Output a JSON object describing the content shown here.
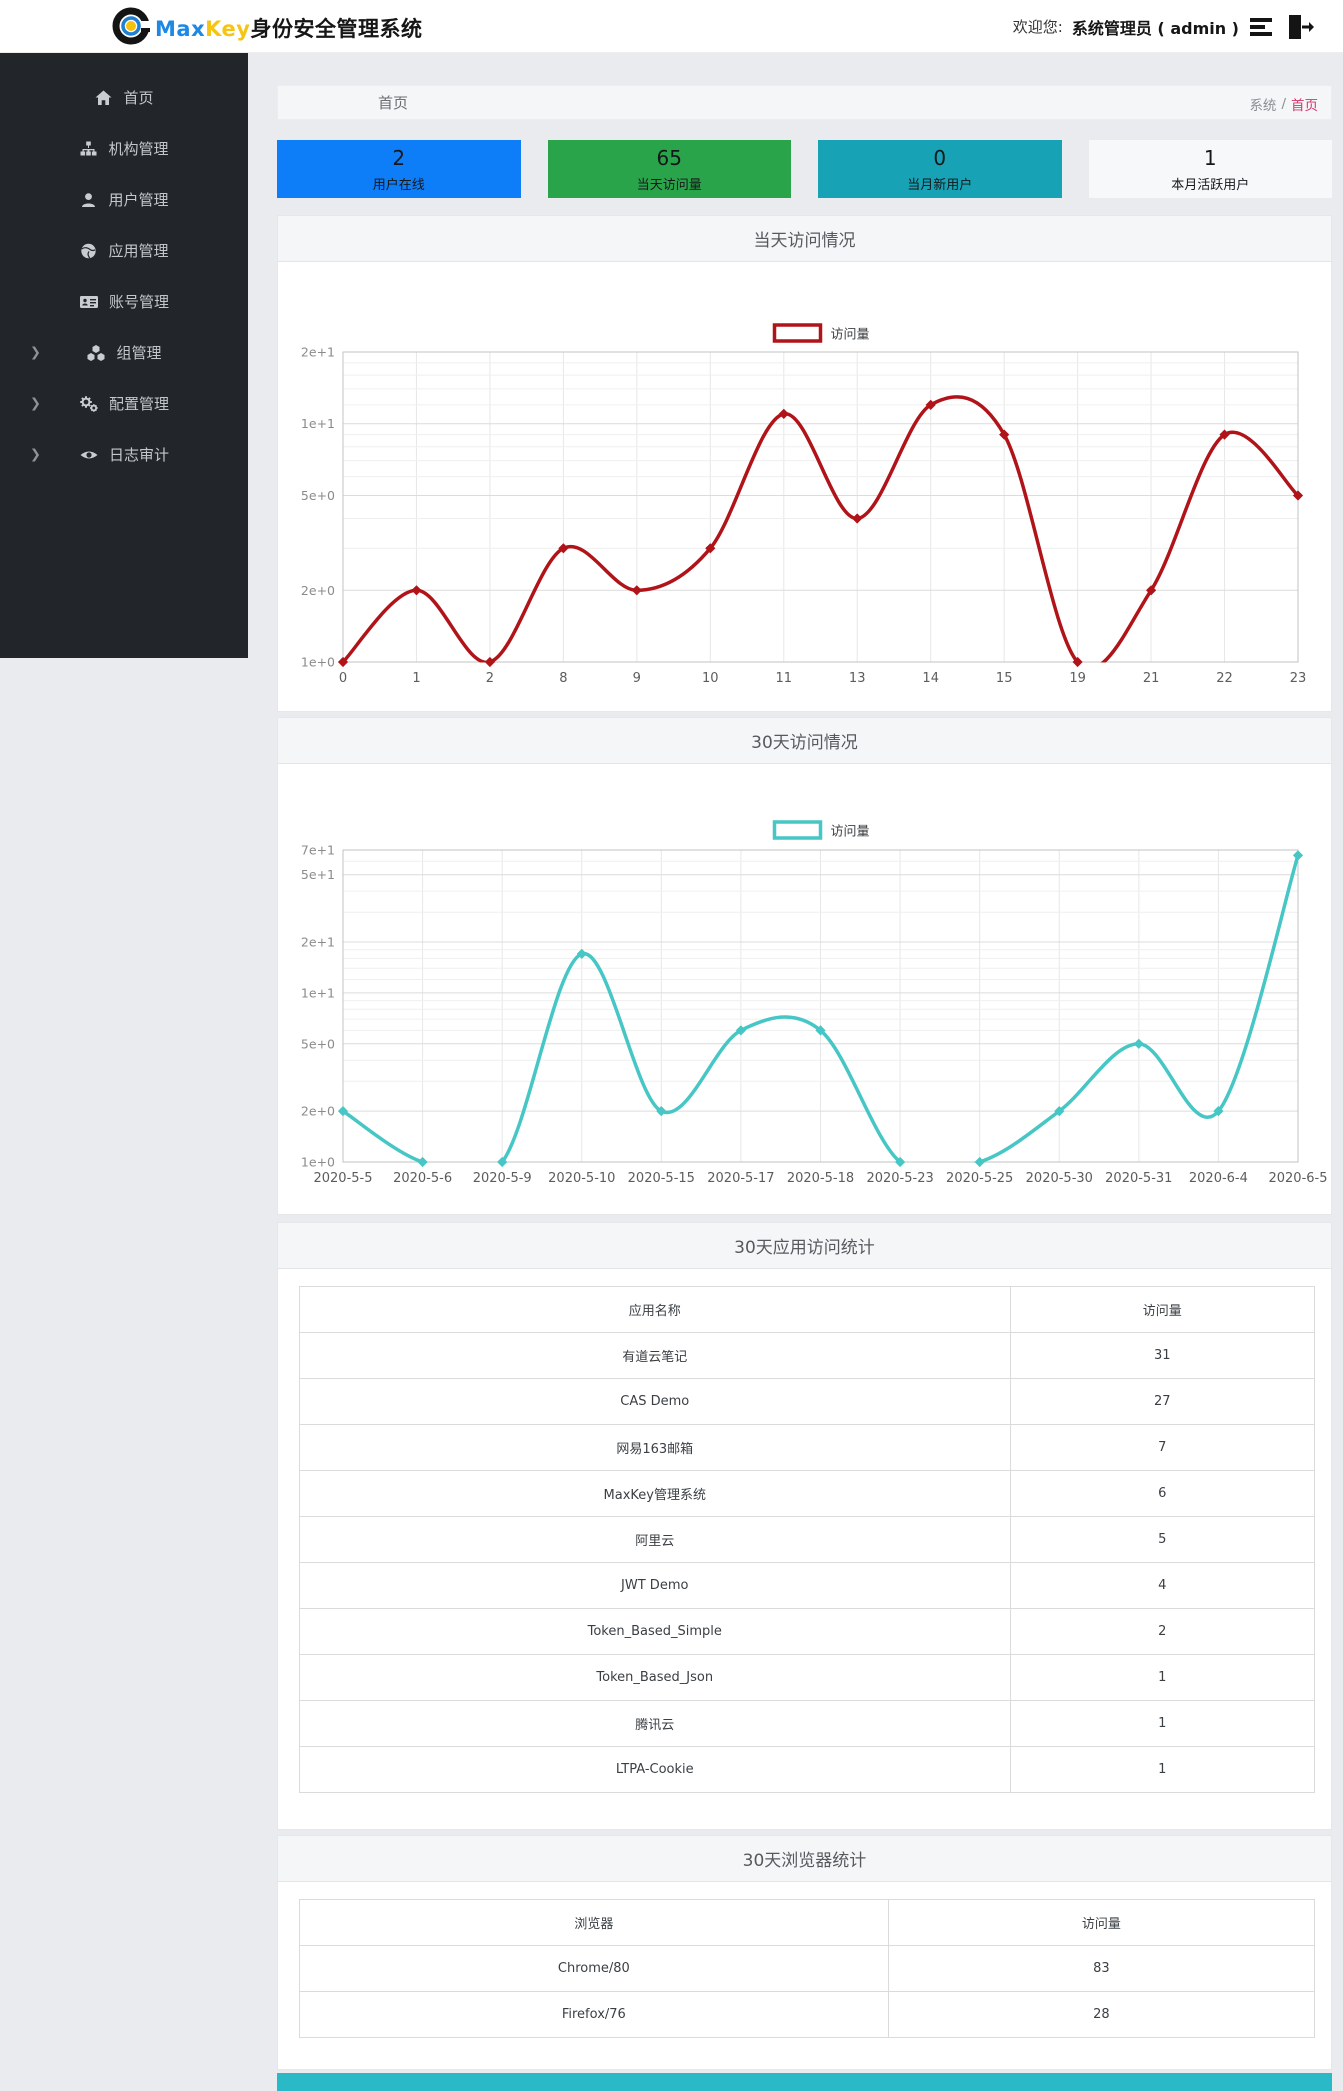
{
  "topbar": {
    "logo_max": "Max",
    "logo_key": "Key",
    "logo_suffix": "身份安全管理系统",
    "welcome_label": "欢迎您:",
    "user": "系统管理员 ( admin )"
  },
  "sidebar": {
    "items": [
      {
        "label": "首页",
        "icon": "home-icon",
        "expandable": false
      },
      {
        "label": "机构管理",
        "icon": "sitemap-icon",
        "expandable": false
      },
      {
        "label": "用户管理",
        "icon": "user-icon",
        "expandable": false
      },
      {
        "label": "应用管理",
        "icon": "globe-icon",
        "expandable": false
      },
      {
        "label": "账号管理",
        "icon": "id-card-icon",
        "expandable": false
      },
      {
        "label": "组管理",
        "icon": "cubes-icon",
        "expandable": true
      },
      {
        "label": "配置管理",
        "icon": "gears-icon",
        "expandable": true
      },
      {
        "label": "日志审计",
        "icon": "eye-icon",
        "expandable": true
      }
    ]
  },
  "header": {
    "title": "首页",
    "breadcrumb_section": "系统",
    "breadcrumb_sep": "/",
    "breadcrumb_current": "首页"
  },
  "stat_cards": [
    {
      "value": "2",
      "label": "用户在线",
      "color": "#0d7ef8"
    },
    {
      "value": "65",
      "label": "当天访问量",
      "color": "#2aa44a"
    },
    {
      "value": "0",
      "label": "当月新用户",
      "color": "#18a2b5"
    },
    {
      "value": "1",
      "label": "本月活跃用户",
      "color": "#f7f8f9"
    }
  ],
  "panels": [
    {
      "title": "当天访问情况"
    },
    {
      "title": "30天访问情况"
    },
    {
      "title": "30天应用访问统计"
    },
    {
      "title": "30天浏览器统计"
    }
  ],
  "chart_data": [
    {
      "type": "line",
      "title": "当天访问情况",
      "legend": "访问量",
      "color": "#b01419",
      "y_scale": "log",
      "ylim": [
        1,
        20
      ],
      "categories": [
        "0",
        "1",
        "2",
        "8",
        "9",
        "10",
        "11",
        "13",
        "14",
        "15",
        "19",
        "21",
        "22",
        "23"
      ],
      "values": [
        1,
        2,
        1,
        3,
        2,
        3,
        11,
        4,
        12,
        9,
        1,
        2,
        9,
        5
      ],
      "yticks": [
        [
          1,
          "1e+0"
        ],
        [
          2,
          "2e+0"
        ],
        [
          5,
          "5e+0"
        ],
        [
          10,
          "1e+1"
        ],
        [
          20,
          "2e+1"
        ]
      ],
      "minor_ticks": [
        3,
        4,
        6,
        7,
        8,
        9,
        12,
        14,
        16,
        18
      ],
      "grid": true,
      "legend_position": "top-center"
    },
    {
      "type": "line",
      "title": "30天访问情况",
      "legend": "访问量",
      "color": "#46c6c4",
      "y_scale": "log",
      "ylim": [
        1,
        70
      ],
      "categories": [
        "2020-5-5",
        "2020-5-6",
        "2020-5-9",
        "2020-5-10",
        "2020-5-15",
        "2020-5-17",
        "2020-5-18",
        "2020-5-23",
        "2020-5-25",
        "2020-5-30",
        "2020-5-31",
        "2020-6-4",
        "2020-6-5"
      ],
      "values": [
        2,
        1,
        1,
        17,
        2,
        6,
        6,
        1,
        1,
        2,
        5,
        2,
        65
      ],
      "yticks": [
        [
          1,
          "1e+0"
        ],
        [
          2,
          "2e+0"
        ],
        [
          5,
          "5e+0"
        ],
        [
          10,
          "1e+1"
        ],
        [
          20,
          "2e+1"
        ],
        [
          50,
          "5e+1"
        ],
        [
          70,
          "7e+1"
        ]
      ],
      "minor_ticks": [
        3,
        4,
        6,
        7,
        8,
        9,
        12,
        14,
        16,
        18,
        30,
        40,
        60
      ],
      "grid": true,
      "legend_position": "top-center"
    }
  ],
  "app_table": {
    "headers": [
      "应用名称",
      "访问量"
    ],
    "rows": [
      [
        "有道云笔记",
        "31"
      ],
      [
        "CAS Demo",
        "27"
      ],
      [
        "网易163邮箱",
        "7"
      ],
      [
        "MaxKey管理系统",
        "6"
      ],
      [
        "阿里云",
        "5"
      ],
      [
        "JWT Demo",
        "4"
      ],
      [
        "Token_Based_Simple",
        "2"
      ],
      [
        "Token_Based_Json",
        "1"
      ],
      [
        "腾讯云",
        "1"
      ],
      [
        "LTPA-Cookie",
        "1"
      ]
    ]
  },
  "browser_table": {
    "headers": [
      "浏览器",
      "访问量"
    ],
    "rows": [
      [
        "Chrome/80",
        "83"
      ],
      [
        "Firefox/76",
        "28"
      ]
    ]
  },
  "colors": {
    "breadcrumb_accent": "#d6336c",
    "footer_bar": "#2ab9c6",
    "sidebar_bg": "#22262b"
  }
}
